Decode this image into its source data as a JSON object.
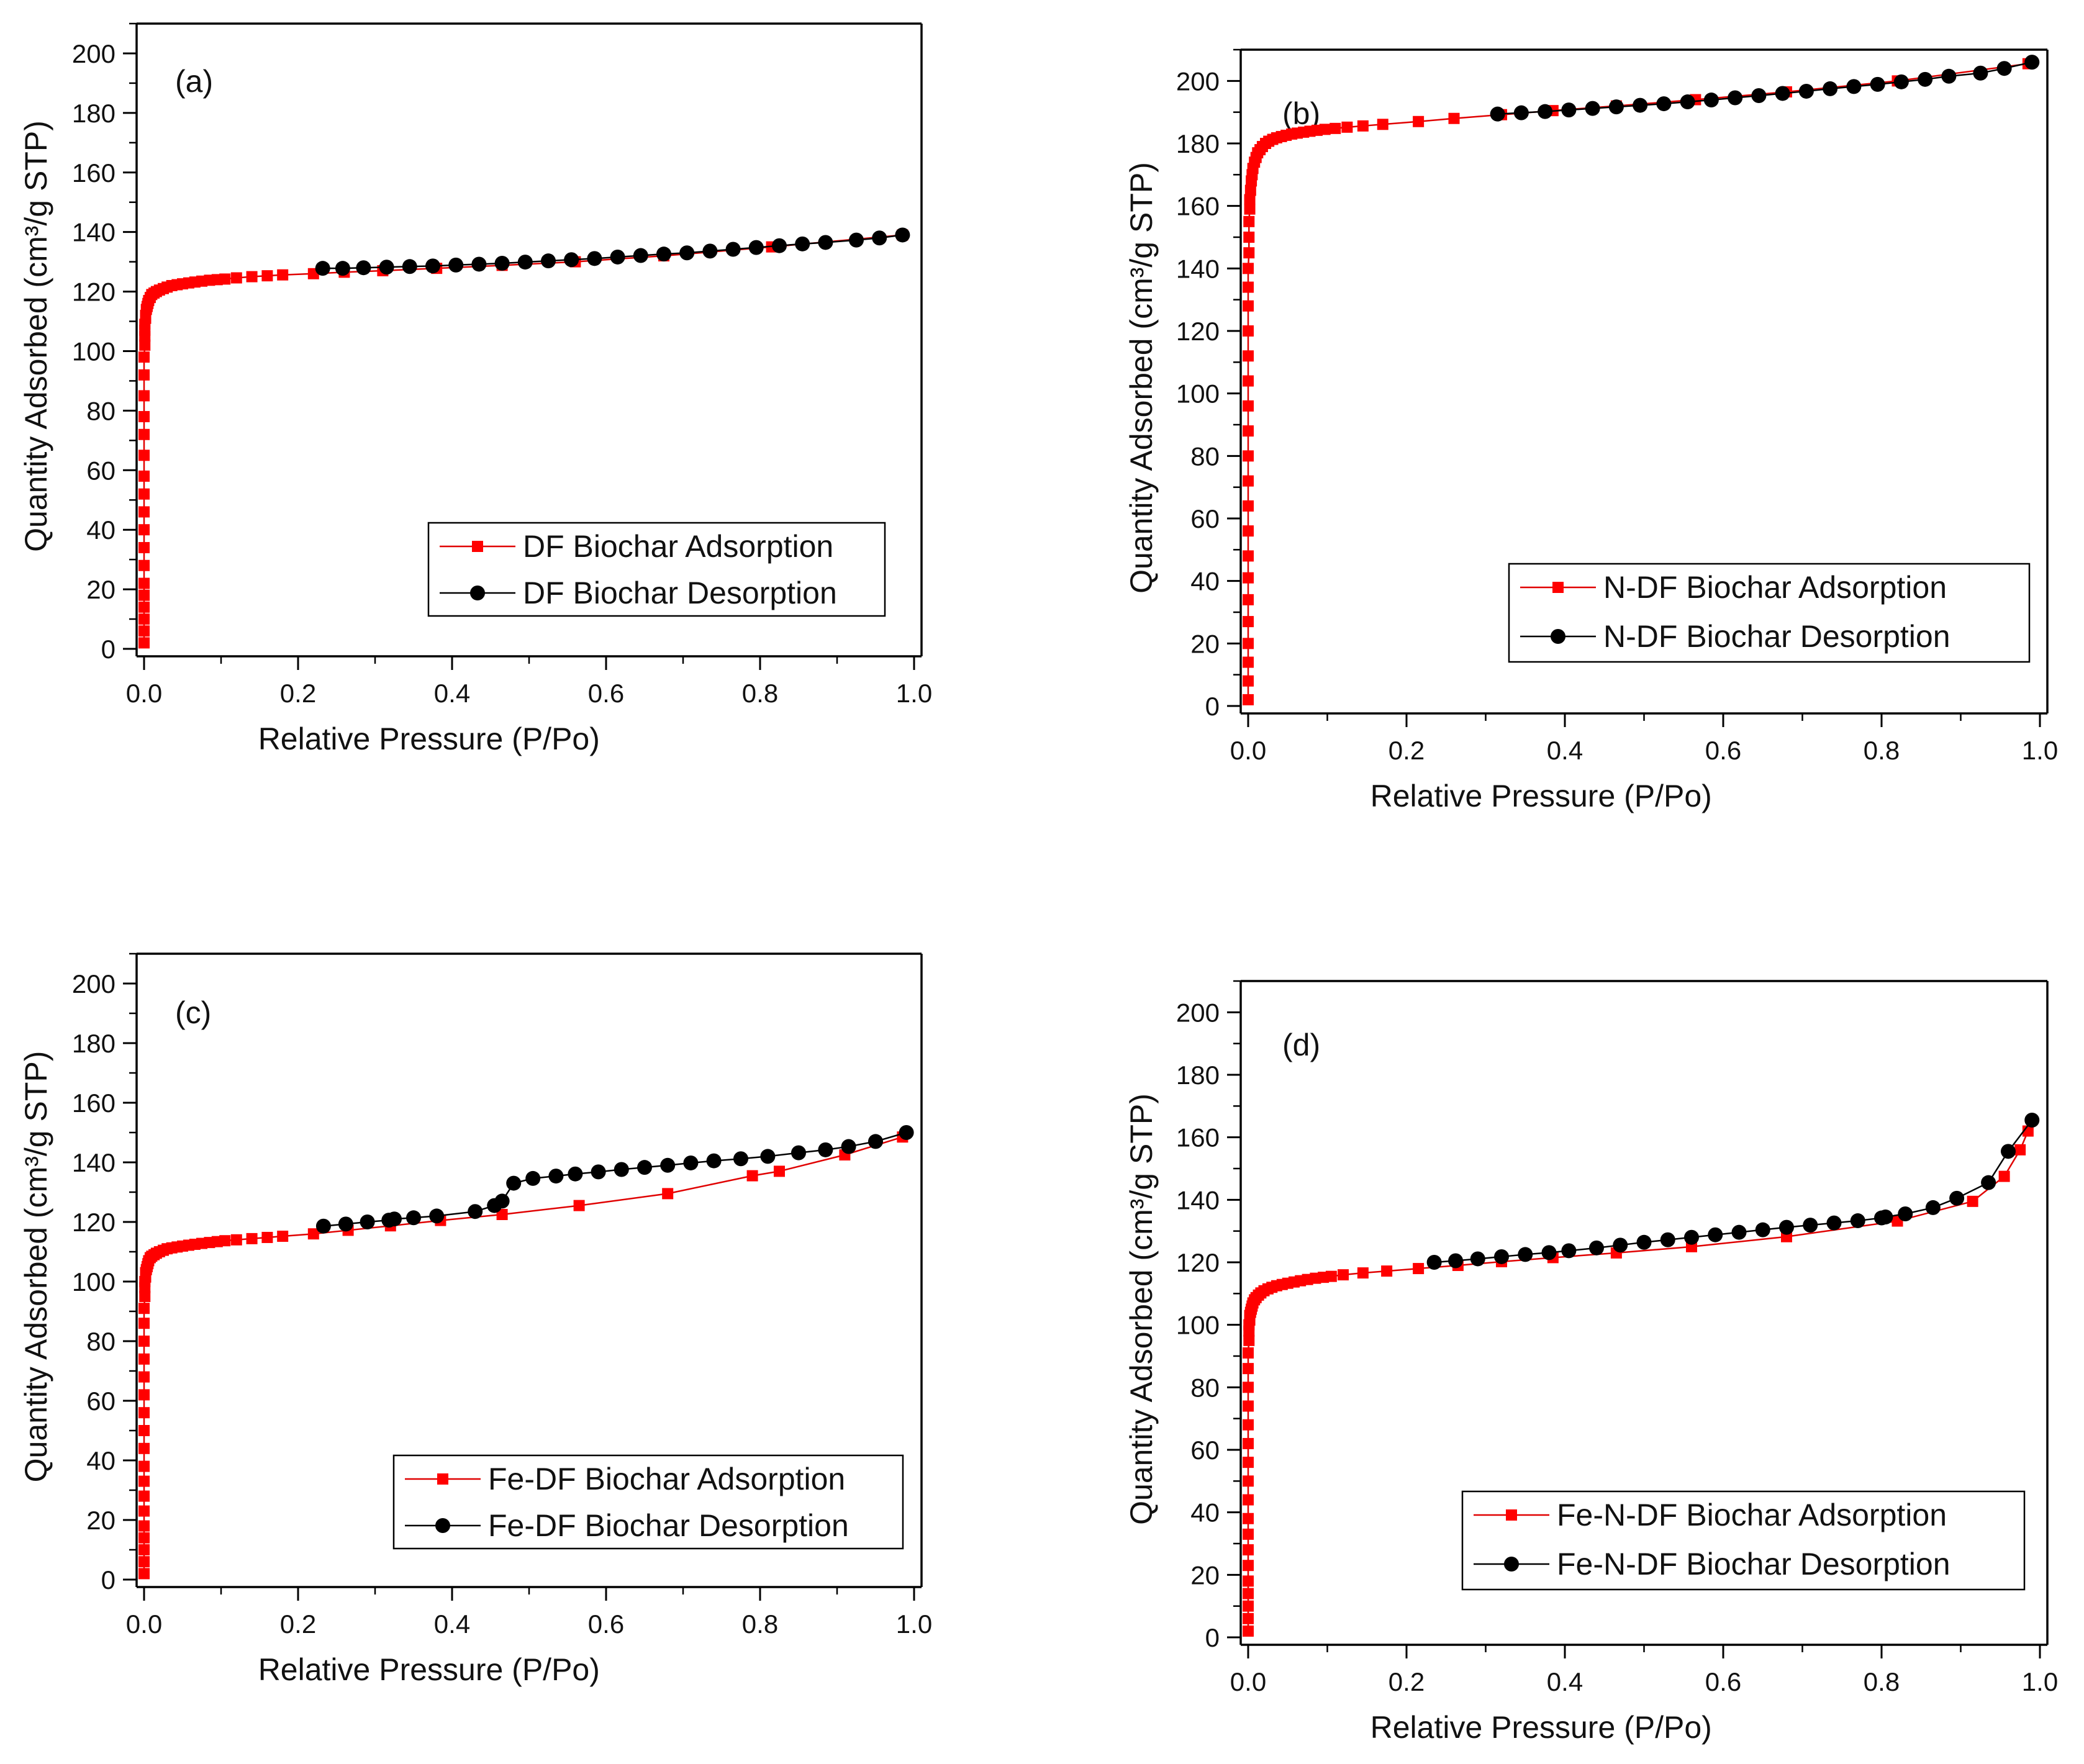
{
  "colors": {
    "adsorption": "#ff0000",
    "desorption": "#000000",
    "adsorption_line": "#e00000"
  },
  "chart_data": [
    {
      "type": "scatter",
      "panel_label": "(a)",
      "xlabel": "Relative Pressure (P/Po)",
      "ylabel": "Quantity Adsorbed (cm³/g STP)",
      "xlim": [
        0,
        1.0
      ],
      "ylim": [
        0,
        210
      ],
      "xticks": [
        "0.0",
        "0.2",
        "0.4",
        "0.6",
        "0.8",
        "1.0"
      ],
      "yticks": [
        "0",
        "20",
        "40",
        "60",
        "80",
        "100",
        "120",
        "140",
        "160",
        "180",
        "200"
      ],
      "legend": {
        "position": "bottom-right"
      },
      "series": [
        {
          "name": "DF Biochar Adsorption",
          "marker": "square",
          "x": [
            0.0,
            0.0,
            0.0,
            0.0,
            0.0,
            0.0,
            0.0,
            0.0,
            0.0,
            0.0,
            0.0,
            0.0,
            0.0,
            0.0,
            0.0,
            0.0,
            0.0,
            0.0,
            0.001,
            0.001,
            0.001,
            0.001,
            0.002,
            0.002,
            0.003,
            0.004,
            0.005,
            0.006,
            0.008,
            0.01,
            0.013,
            0.016,
            0.02,
            0.025,
            0.03,
            0.036,
            0.043,
            0.05,
            0.058,
            0.066,
            0.075,
            0.085,
            0.095,
            0.105,
            0.12,
            0.14,
            0.16,
            0.18,
            0.22,
            0.26,
            0.31,
            0.38,
            0.465,
            0.56,
            0.675,
            0.815,
            0.985
          ],
          "y": [
            2,
            6,
            10,
            14,
            18,
            22,
            28,
            34,
            40,
            46,
            52,
            58,
            65,
            72,
            78,
            85,
            92,
            98,
            102,
            105,
            107,
            109,
            111,
            112,
            114,
            115,
            116,
            117,
            118,
            119,
            119.5,
            120,
            120.5,
            121,
            121.5,
            122,
            122.3,
            122.6,
            122.9,
            123.2,
            123.5,
            123.8,
            124,
            124.2,
            124.6,
            125,
            125.3,
            125.6,
            126,
            126.5,
            127,
            127.8,
            128.8,
            130,
            132,
            135,
            139
          ]
        },
        {
          "name": "DF Biochar Desorption",
          "marker": "circle",
          "x": [
            0.985,
            0.955,
            0.925,
            0.885,
            0.855,
            0.825,
            0.795,
            0.765,
            0.735,
            0.705,
            0.675,
            0.645,
            0.615,
            0.585,
            0.555,
            0.525,
            0.495,
            0.465,
            0.435,
            0.405,
            0.375,
            0.345,
            0.315,
            0.285,
            0.258,
            0.232
          ],
          "y": [
            139,
            138,
            137.3,
            136.5,
            136,
            135.4,
            134.8,
            134.2,
            133.6,
            133,
            132.6,
            132.1,
            131.6,
            131.1,
            130.7,
            130.3,
            129.9,
            129.5,
            129.2,
            128.9,
            128.6,
            128.4,
            128.2,
            128,
            127.8,
            127.8
          ]
        }
      ]
    },
    {
      "type": "scatter",
      "panel_label": "(b)",
      "xlabel": "Relative Pressure (P/Po)",
      "ylabel": "Quantity Adsorbed (cm³/g STP)",
      "xlim": [
        0,
        1.0
      ],
      "ylim": [
        0,
        210
      ],
      "xticks": [
        "0.0",
        "0.2",
        "0.4",
        "0.6",
        "0.8",
        "1.0"
      ],
      "yticks": [
        "0",
        "20",
        "40",
        "60",
        "80",
        "100",
        "120",
        "140",
        "160",
        "180",
        "200"
      ],
      "legend": {
        "position": "bottom-right"
      },
      "series": [
        {
          "name": "N-DF Biochar Adsorption",
          "marker": "square",
          "x": [
            0.0,
            0.0,
            0.0,
            0.0,
            0.0,
            0.0,
            0.0,
            0.0,
            0.0,
            0.0,
            0.0,
            0.0,
            0.0,
            0.0,
            0.0,
            0.0,
            0.0,
            0.0,
            0.0,
            0.0,
            0.001,
            0.001,
            0.001,
            0.002,
            0.002,
            0.003,
            0.004,
            0.005,
            0.006,
            0.008,
            0.01,
            0.012,
            0.015,
            0.018,
            0.022,
            0.026,
            0.031,
            0.036,
            0.042,
            0.048,
            0.055,
            0.062,
            0.07,
            0.078,
            0.087,
            0.097,
            0.11,
            0.125,
            0.145,
            0.17,
            0.215,
            0.26,
            0.32,
            0.385,
            0.465,
            0.565,
            0.68,
            0.82,
            0.985
          ],
          "y": [
            2,
            8,
            14,
            20,
            27,
            34,
            41,
            48,
            56,
            64,
            72,
            80,
            88,
            96,
            104,
            112,
            120,
            128,
            134,
            140,
            145,
            150,
            155,
            159,
            162,
            165,
            168,
            170,
            172,
            174,
            175.5,
            177,
            178,
            179,
            180,
            180.7,
            181.3,
            181.8,
            182.2,
            182.6,
            183,
            183.3,
            183.6,
            183.9,
            184.2,
            184.5,
            184.8,
            185.2,
            185.6,
            186.1,
            187,
            188,
            189.2,
            190.5,
            192,
            194,
            196.5,
            200,
            205.5
          ]
        },
        {
          "name": "N-DF Biochar Desorption",
          "marker": "circle",
          "x": [
            0.99,
            0.955,
            0.925,
            0.885,
            0.855,
            0.825,
            0.795,
            0.765,
            0.735,
            0.705,
            0.675,
            0.645,
            0.615,
            0.585,
            0.555,
            0.525,
            0.495,
            0.465,
            0.435,
            0.405,
            0.375,
            0.345,
            0.315
          ],
          "y": [
            206,
            204,
            202.5,
            201.5,
            200.5,
            199.7,
            198.9,
            198.2,
            197.5,
            196.7,
            196,
            195.3,
            194.6,
            193.9,
            193.3,
            192.7,
            192.2,
            191.7,
            191.2,
            190.7,
            190.2,
            189.8,
            189.4
          ]
        }
      ]
    },
    {
      "type": "scatter",
      "panel_label": "(c)",
      "xlabel": "Relative Pressure (P/Po)",
      "ylabel": "Quantity Adsorbed (cm³/g STP)",
      "xlim": [
        0,
        1.0
      ],
      "ylim": [
        0,
        210
      ],
      "xticks": [
        "0.0",
        "0.2",
        "0.4",
        "0.6",
        "0.8",
        "1.0"
      ],
      "yticks": [
        "0",
        "20",
        "40",
        "60",
        "80",
        "100",
        "120",
        "140",
        "160",
        "180",
        "200"
      ],
      "legend": {
        "position": "bottom-right"
      },
      "series": [
        {
          "name": "Fe-DF Biochar Adsorption",
          "marker": "square",
          "x": [
            0.0,
            0.0,
            0.0,
            0.0,
            0.0,
            0.0,
            0.0,
            0.0,
            0.0,
            0.0,
            0.0,
            0.0,
            0.0,
            0.0,
            0.0,
            0.0,
            0.0,
            0.0,
            0.001,
            0.001,
            0.001,
            0.002,
            0.002,
            0.003,
            0.004,
            0.005,
            0.006,
            0.008,
            0.01,
            0.013,
            0.016,
            0.02,
            0.025,
            0.03,
            0.036,
            0.043,
            0.05,
            0.058,
            0.066,
            0.075,
            0.085,
            0.095,
            0.105,
            0.12,
            0.14,
            0.16,
            0.18,
            0.22,
            0.265,
            0.32,
            0.385,
            0.465,
            0.565,
            0.68,
            0.79,
            0.825,
            0.91,
            0.985
          ],
          "y": [
            2,
            6,
            10,
            14,
            18,
            23,
            28,
            33,
            38,
            44,
            50,
            56,
            62,
            68,
            74,
            80,
            86,
            91,
            95,
            98,
            100,
            101.5,
            103,
            104,
            105,
            106,
            107,
            108,
            108.5,
            109,
            109.5,
            110,
            110.5,
            111,
            111.3,
            111.6,
            111.9,
            112.2,
            112.5,
            112.8,
            113.1,
            113.4,
            113.7,
            114,
            114.4,
            114.8,
            115.2,
            116,
            117.2,
            118.7,
            120.5,
            122.5,
            125.5,
            129.5,
            135.5,
            137,
            142.5,
            148.5
          ]
        },
        {
          "name": "Fe-DF Biochar Desorption",
          "marker": "circle",
          "x": [
            0.99,
            0.95,
            0.915,
            0.885,
            0.85,
            0.81,
            0.775,
            0.74,
            0.71,
            0.68,
            0.65,
            0.62,
            0.59,
            0.56,
            0.535,
            0.505,
            0.48,
            0.465,
            0.455,
            0.43,
            0.38,
            0.35,
            0.325,
            0.318,
            0.29,
            0.262,
            0.233
          ],
          "y": [
            150,
            147,
            145.3,
            144.2,
            143.2,
            142,
            141.2,
            140.5,
            139.8,
            139,
            138.3,
            137.6,
            136.8,
            136.1,
            135.4,
            134.6,
            133,
            127,
            125.5,
            123.5,
            122,
            121.4,
            121,
            120.6,
            120,
            119.3,
            118.6
          ]
        }
      ]
    },
    {
      "type": "scatter",
      "panel_label": "(d)",
      "xlabel": "Relative Pressure (P/Po)",
      "ylabel": "Quantity Adsorbed (cm³/g STP)",
      "xlim": [
        0,
        1.0
      ],
      "ylim": [
        0,
        210
      ],
      "xticks": [
        "0.0",
        "0.2",
        "0.4",
        "0.6",
        "0.8",
        "1.0"
      ],
      "yticks": [
        "0",
        "20",
        "40",
        "60",
        "80",
        "100",
        "120",
        "140",
        "160",
        "180",
        "200"
      ],
      "legend": {
        "position": "bottom-right"
      },
      "series": [
        {
          "name": "Fe-N-DF Biochar Adsorption",
          "marker": "square",
          "x": [
            0.0,
            0.0,
            0.0,
            0.0,
            0.0,
            0.0,
            0.0,
            0.0,
            0.0,
            0.0,
            0.0,
            0.0,
            0.0,
            0.0,
            0.0,
            0.0,
            0.0,
            0.0,
            0.001,
            0.001,
            0.001,
            0.002,
            0.002,
            0.003,
            0.004,
            0.005,
            0.006,
            0.008,
            0.01,
            0.013,
            0.016,
            0.02,
            0.025,
            0.03,
            0.036,
            0.043,
            0.05,
            0.058,
            0.066,
            0.075,
            0.085,
            0.095,
            0.105,
            0.12,
            0.145,
            0.175,
            0.215,
            0.265,
            0.32,
            0.385,
            0.465,
            0.56,
            0.68,
            0.82,
            0.915,
            0.955,
            0.975,
            0.985
          ],
          "y": [
            2,
            6,
            10,
            14,
            18,
            23,
            28,
            33,
            38,
            44,
            50,
            56,
            62,
            68,
            74,
            80,
            86,
            91,
            95,
            98,
            100,
            101.5,
            103,
            104,
            105,
            106,
            107,
            108,
            108.7,
            109.5,
            110.2,
            110.9,
            111.5,
            112,
            112.5,
            112.9,
            113.3,
            113.7,
            114.1,
            114.5,
            114.9,
            115.2,
            115.5,
            116,
            116.6,
            117.2,
            118,
            119,
            120.2,
            121.5,
            123,
            125,
            128.2,
            133.2,
            139.5,
            147.5,
            156,
            162
          ]
        },
        {
          "name": "Fe-N-DF Biochar Desorption",
          "marker": "circle",
          "x": [
            0.99,
            0.96,
            0.935,
            0.895,
            0.865,
            0.83,
            0.805,
            0.8,
            0.77,
            0.74,
            0.71,
            0.68,
            0.65,
            0.62,
            0.59,
            0.56,
            0.53,
            0.5,
            0.47,
            0.44,
            0.405,
            0.38,
            0.35,
            0.32,
            0.29,
            0.262,
            0.235
          ],
          "y": [
            165.5,
            155.5,
            145.5,
            140.5,
            137.5,
            135.5,
            134.5,
            134.2,
            133.3,
            132.6,
            131.9,
            131.2,
            130.4,
            129.6,
            128.8,
            128,
            127.2,
            126.4,
            125.5,
            124.6,
            123.7,
            123.1,
            122.5,
            121.8,
            121.1,
            120.5,
            120
          ]
        }
      ]
    }
  ]
}
